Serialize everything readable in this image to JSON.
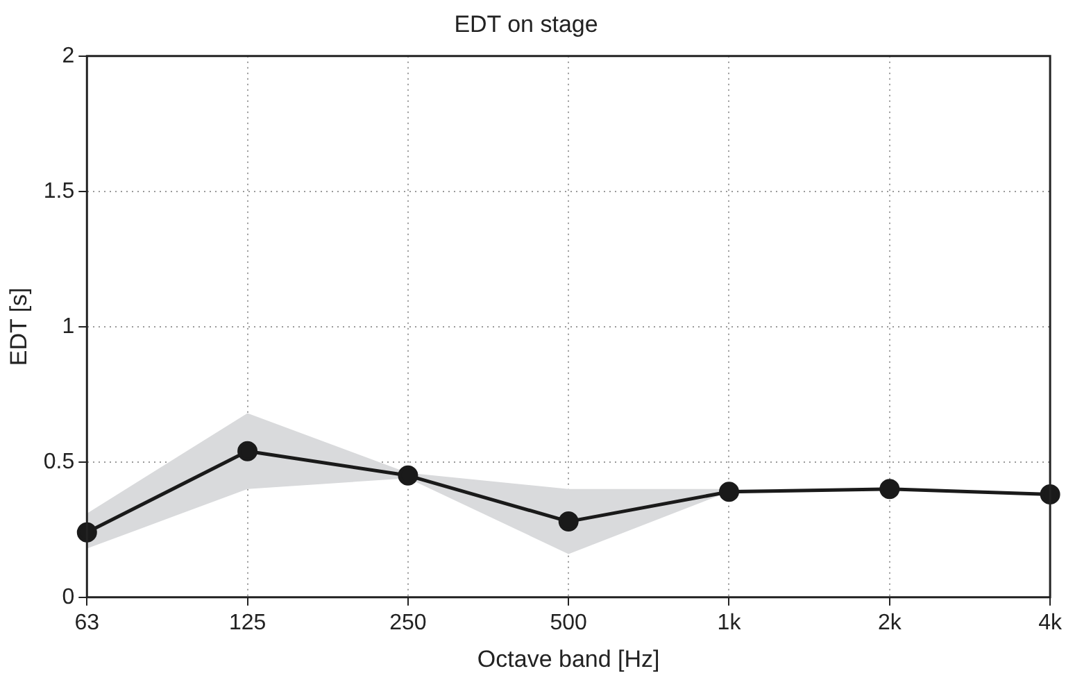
{
  "chart_data": {
    "type": "line",
    "title": "EDT on stage",
    "xlabel": "Octave band [Hz]",
    "ylabel": "EDT [s]",
    "categories": [
      "63",
      "125",
      "250",
      "500",
      "1k",
      "2k",
      "4k"
    ],
    "series": [
      {
        "color": "#1a1a1a",
        "values": [
          0.24,
          0.54,
          0.45,
          0.28,
          0.39,
          0.4,
          0.38
        ],
        "lower": [
          0.18,
          0.4,
          0.44,
          0.16,
          0.39,
          0.4,
          0.38
        ],
        "upper": [
          0.31,
          0.68,
          0.46,
          0.4,
          0.4,
          0.4,
          0.38
        ]
      }
    ],
    "ylim": [
      0,
      2
    ],
    "yticks": [
      0,
      0.5,
      1,
      1.5,
      2
    ],
    "grid": true,
    "legend": false,
    "marker": "circle",
    "line_style": "solid"
  }
}
